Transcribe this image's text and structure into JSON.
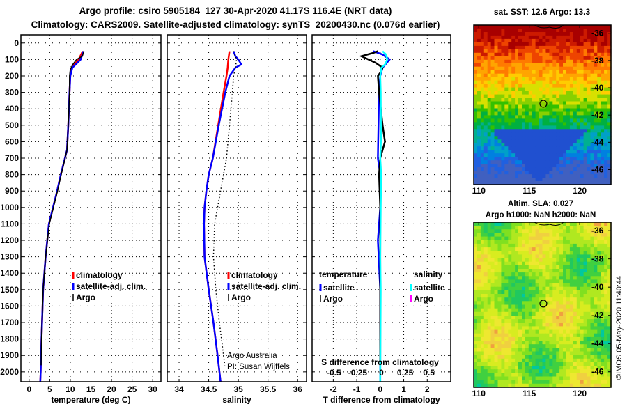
{
  "title_line1": "Argo profile: csiro 5905184_127 30-Apr-2020 41.17S 116.4E (NRT data)",
  "title_line2": "Climatology: CARS2009. Satellite-adjusted climatology: synTS_20200430.nc (0.076d earlier)",
  "credit": "Argo Australia",
  "pi": "PI: Susan Wijffels",
  "copyright": "©IMOS 05-May-2020 11:40:44",
  "colors": {
    "climatology": "#ff0000",
    "satellite": "#0000ff",
    "argo": "#000000",
    "sal_satellite": "#00ffff",
    "sal_argo": "#ff00ff"
  },
  "chart_data": [
    {
      "type": "line",
      "name": "temperature",
      "xlabel": "temperature (deg C)",
      "xlim": [
        -2,
        32
      ],
      "ylim": [
        2060,
        -50
      ],
      "xticks": [
        0,
        5,
        10,
        15,
        20,
        25,
        30
      ],
      "yticks": [
        0,
        100,
        200,
        300,
        400,
        500,
        600,
        700,
        800,
        900,
        1000,
        1100,
        1200,
        1300,
        1400,
        1500,
        1600,
        1700,
        1800,
        1900,
        2000
      ],
      "legend": [
        "climatology",
        "satellite-adj. clim.",
        "Argo"
      ],
      "series": [
        {
          "name": "climatology",
          "depth": [
            50,
            100,
            150,
            200,
            300,
            500,
            650,
            800,
            900,
            1000,
            1100,
            1300,
            1500,
            1800,
            2000,
            2060
          ],
          "values": [
            13.0,
            12.0,
            10.3,
            10.0,
            9.8,
            9.5,
            9.2,
            7.7,
            6.8,
            5.8,
            4.8,
            4.0,
            3.4,
            3.0,
            2.8,
            2.7
          ]
        },
        {
          "name": "satellite-adj. clim.",
          "depth": [
            50,
            100,
            150,
            200,
            300,
            500,
            650,
            800,
            900,
            1000,
            1100,
            1300,
            1500,
            1800,
            2000,
            2060
          ],
          "values": [
            13.2,
            12.5,
            10.5,
            10.0,
            9.8,
            9.5,
            9.2,
            7.7,
            6.8,
            5.8,
            4.8,
            4.0,
            3.4,
            3.0,
            2.8,
            2.7
          ]
        },
        {
          "name": "Argo",
          "depth": [
            50,
            80,
            100,
            130,
            160,
            200,
            300,
            500,
            650,
            800,
            900,
            1000,
            1100,
            1300,
            1500,
            1800,
            1960
          ],
          "values": [
            13.3,
            12.9,
            11.5,
            10.6,
            10.0,
            9.8,
            9.8,
            9.5,
            9.2,
            7.8,
            6.9,
            5.9,
            4.9,
            4.0,
            3.4,
            3.0,
            2.9
          ]
        }
      ]
    },
    {
      "type": "line",
      "name": "salinity",
      "xlabel": "salinity",
      "xlim": [
        33.8,
        36.15
      ],
      "ylim": [
        2060,
        -50
      ],
      "xticks": [
        34,
        34.5,
        35,
        35.5,
        36
      ],
      "legend": [
        "climatology",
        "satellite-adj. clim.",
        "Argo"
      ],
      "series": [
        {
          "name": "climatology",
          "depth": [
            50,
            100,
            150,
            200,
            300,
            500,
            700,
            800,
            900,
            1000,
            1100,
            1300,
            1500,
            1700,
            1900,
            2060
          ],
          "values": [
            34.85,
            34.83,
            34.82,
            34.8,
            34.75,
            34.66,
            34.57,
            34.5,
            34.46,
            34.43,
            34.42,
            34.43,
            34.5,
            34.58,
            34.65,
            34.7
          ]
        },
        {
          "name": "satellite-adj. clim.",
          "depth": [
            50,
            80,
            100,
            130,
            150,
            200,
            300,
            500,
            700,
            800,
            900,
            1000,
            1100,
            1300,
            1500,
            1700,
            1900,
            2060
          ],
          "values": [
            34.92,
            34.95,
            35.0,
            35.05,
            34.95,
            34.85,
            34.78,
            34.67,
            34.57,
            34.5,
            34.46,
            34.43,
            34.42,
            34.43,
            34.5,
            34.58,
            34.65,
            34.7
          ]
        },
        {
          "name": "Argo",
          "depth": [
            50,
            100,
            150,
            200,
            300,
            500,
            700,
            900,
            1100,
            1300,
            1500,
            1700,
            1900,
            1960
          ],
          "values": [
            34.92,
            34.97,
            34.95,
            34.92,
            34.9,
            34.85,
            34.8,
            34.7,
            34.6,
            34.58,
            34.62,
            34.68,
            34.75,
            34.77
          ]
        }
      ]
    },
    {
      "type": "line",
      "name": "difference",
      "xlabel": "T difference from climatology",
      "xlim": [
        -2.9,
        3.0
      ],
      "ylim": [
        2060,
        -50
      ],
      "xticks": [
        -2,
        -1,
        0,
        1,
        2
      ],
      "x2label": "S difference from climatology",
      "x2ticks": [
        -0.5,
        -0.25,
        0,
        0.25,
        0.5
      ],
      "x2lim": [
        -0.73,
        0.73
      ],
      "legend_temperature": {
        "title": "temperature",
        "items": [
          "satellite",
          "Argo"
        ]
      },
      "legend_salinity": {
        "title": "salinity",
        "items": [
          "satellite",
          "Argo"
        ]
      },
      "series": [
        {
          "name": "temperature satellite",
          "depth": [
            50,
            70,
            100,
            150,
            200,
            300,
            700,
            800,
            1000,
            1200,
            1500,
            2060
          ],
          "values": [
            -0.3,
            0.1,
            0.4,
            0.1,
            0.0,
            -0.05,
            -0.1,
            0.0,
            0.0,
            -0.1,
            0.0,
            0.0
          ]
        },
        {
          "name": "temperature Argo",
          "depth": [
            50,
            60,
            80,
            100,
            120,
            150,
            180,
            200,
            300,
            500,
            600,
            700,
            800,
            1000,
            1960
          ],
          "values": [
            -0.1,
            -0.3,
            -0.8,
            -0.5,
            -0.2,
            0.1,
            0.0,
            -0.1,
            -0.05,
            0.1,
            0.2,
            0.0,
            -0.05,
            0.0,
            0.0
          ]
        },
        {
          "name": "salinity satellite",
          "depth": [
            50,
            70,
            100,
            130,
            150,
            200,
            300,
            600,
            700,
            800,
            1000,
            1300,
            1500,
            2060
          ],
          "values": [
            0.1,
            0.25,
            0.3,
            0.2,
            0.05,
            0.0,
            0.02,
            0.03,
            0.0,
            0.04,
            0.02,
            0.0,
            0.02,
            0.0
          ]
        }
      ]
    },
    {
      "type": "heatmap",
      "name": "sst-map",
      "title": "sat. SST: 12.6 Argo: 13.3",
      "xticks": [
        110,
        115,
        120
      ],
      "yticks": [
        -36,
        -38,
        -40,
        -42,
        -44,
        -46
      ],
      "xlim": [
        109.5,
        123.1
      ],
      "ylim": [
        -47.1,
        -35.4
      ],
      "marker": [
        116.4,
        -41.17
      ]
    },
    {
      "type": "heatmap",
      "name": "sla-map",
      "title": "Altim. SLA: 0.027",
      "subtitle": "Argo h1000: NaN h2000: NaN",
      "xticks": [
        110,
        115,
        120
      ],
      "yticks": [
        -36,
        -38,
        -40,
        -42,
        -44,
        -46
      ],
      "xlim": [
        109.5,
        123.1
      ],
      "ylim": [
        -47.1,
        -35.4
      ],
      "marker": [
        116.4,
        -41.17
      ]
    }
  ]
}
